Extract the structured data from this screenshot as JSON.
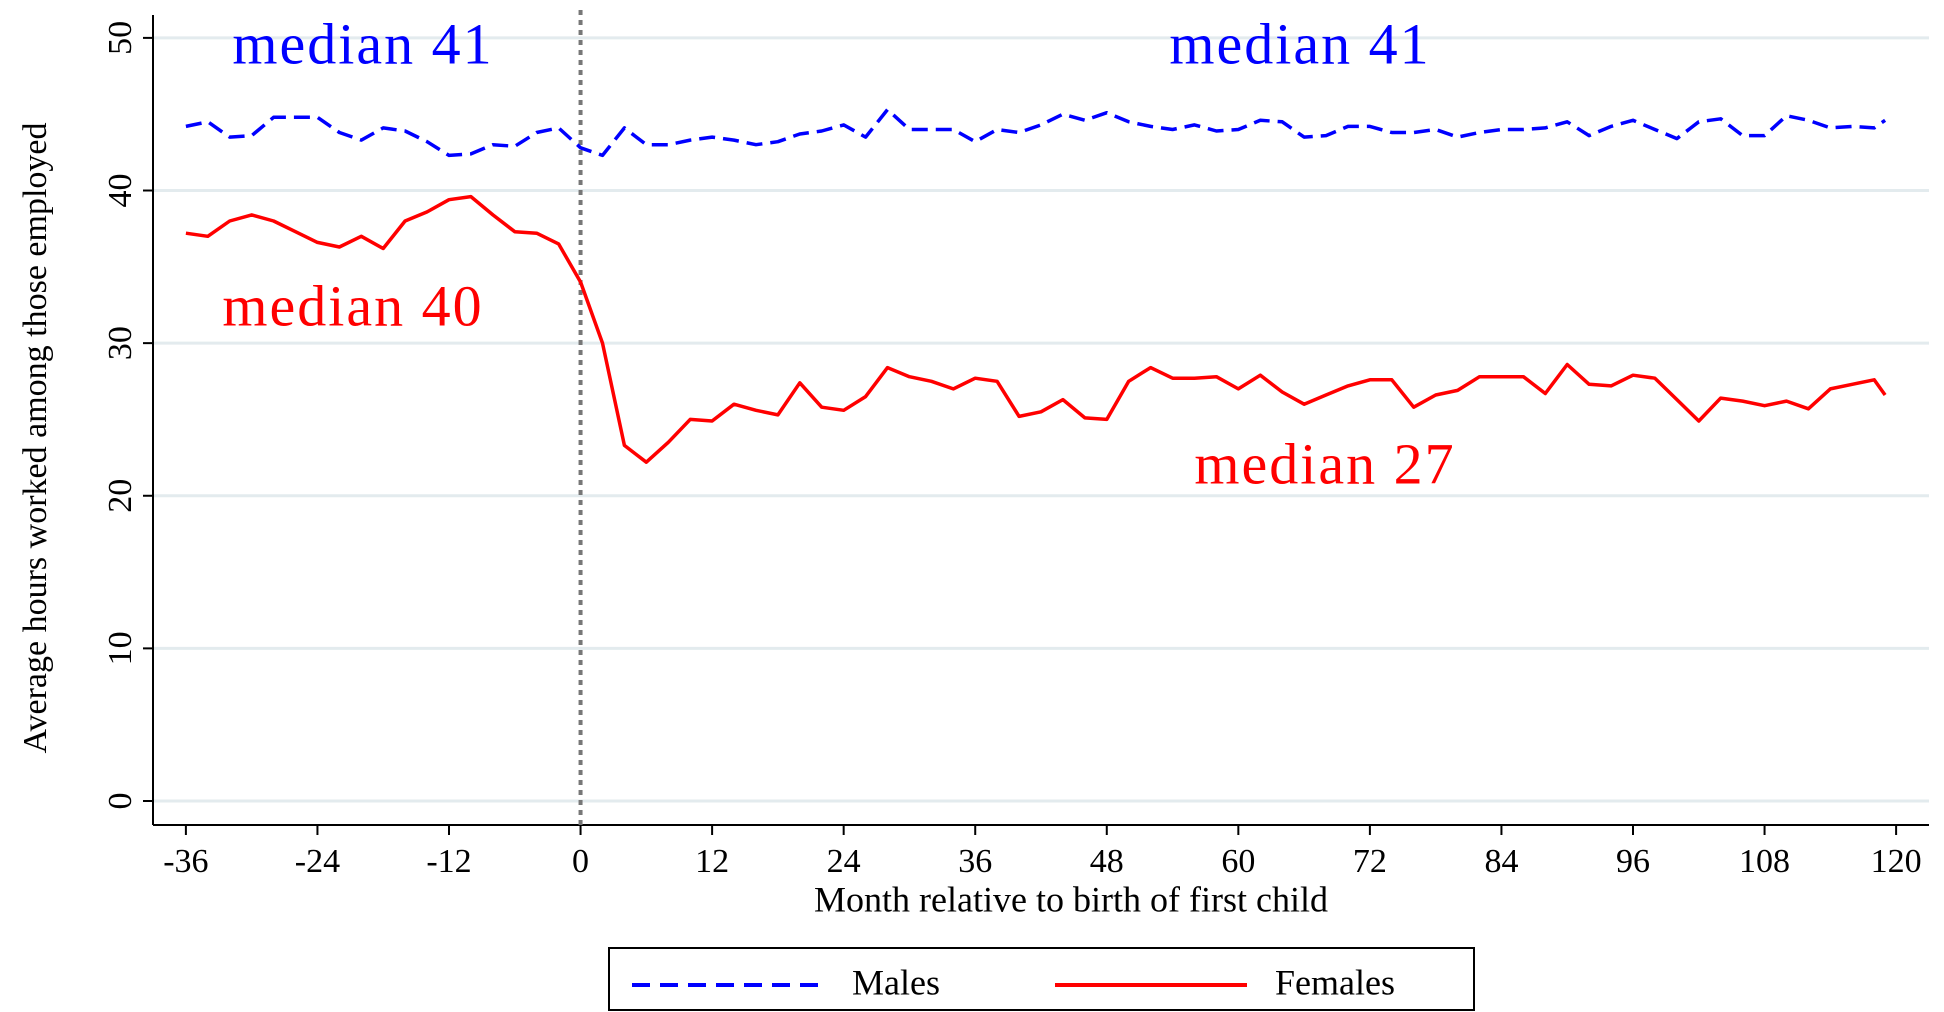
{
  "chart_data": {
    "type": "line",
    "x_label": "Month relative to birth of first child",
    "y_label": "Average hours worked among those employed",
    "x": [
      -36,
      -34,
      -32,
      -30,
      -28,
      -26,
      -24,
      -22,
      -20,
      -18,
      -16,
      -14,
      -12,
      -10,
      -8,
      -6,
      -4,
      -2,
      0,
      2,
      4,
      6,
      8,
      10,
      12,
      14,
      16,
      18,
      20,
      22,
      24,
      26,
      28,
      30,
      32,
      34,
      36,
      38,
      40,
      42,
      44,
      46,
      48,
      50,
      52,
      54,
      56,
      58,
      60,
      62,
      64,
      66,
      68,
      70,
      72,
      74,
      76,
      78,
      80,
      82,
      84,
      86,
      88,
      90,
      92,
      94,
      96,
      98,
      100,
      102,
      104,
      106,
      108,
      110,
      112,
      114,
      116,
      118,
      119
    ],
    "series": [
      {
        "name": "Males",
        "color": "#0000ff",
        "dash": true,
        "values": [
          44.2,
          44.5,
          43.5,
          43.6,
          44.8,
          44.8,
          44.8,
          43.8,
          43.3,
          44.1,
          43.9,
          43.2,
          42.3,
          42.4,
          43.0,
          42.9,
          43.8,
          44.1,
          42.8,
          42.3,
          44.1,
          43.0,
          43.0,
          43.3,
          43.5,
          43.3,
          43.0,
          43.2,
          43.7,
          43.9,
          44.3,
          43.5,
          45.3,
          44.0,
          44.0,
          44.0,
          43.2,
          44.0,
          43.8,
          44.3,
          45.0,
          44.6,
          45.1,
          44.5,
          44.2,
          44.0,
          44.3,
          43.9,
          44.0,
          44.6,
          44.5,
          43.5,
          43.6,
          44.2,
          44.2,
          43.8,
          43.8,
          44.0,
          43.5,
          43.8,
          44.0,
          44.0,
          44.1,
          44.5,
          43.6,
          44.2,
          44.6,
          44.0,
          43.4,
          44.5,
          44.7,
          43.6,
          43.6,
          44.9,
          44.6,
          44.1,
          44.2,
          44.1,
          44.6
        ]
      },
      {
        "name": "Females",
        "color": "#ff0000",
        "dash": false,
        "values": [
          37.2,
          37.0,
          38.0,
          38.4,
          38.0,
          37.3,
          36.6,
          36.3,
          37.0,
          36.2,
          38.0,
          38.6,
          39.4,
          39.6,
          38.4,
          37.3,
          37.2,
          36.5,
          34.0,
          30.0,
          23.3,
          22.2,
          23.5,
          25.0,
          24.9,
          26.0,
          25.6,
          25.3,
          27.4,
          25.8,
          25.6,
          26.5,
          28.4,
          27.8,
          27.5,
          27.0,
          27.7,
          27.5,
          25.2,
          25.5,
          26.3,
          25.1,
          25.0,
          27.5,
          28.4,
          27.7,
          27.7,
          27.8,
          27.0,
          27.9,
          26.8,
          26.0,
          26.6,
          27.2,
          27.6,
          27.6,
          25.8,
          26.6,
          26.9,
          27.8,
          27.8,
          27.8,
          26.7,
          28.6,
          27.3,
          27.2,
          27.9,
          27.7,
          26.3,
          24.9,
          26.4,
          26.2,
          25.9,
          26.2,
          25.7,
          27.0,
          27.3,
          27.6,
          26.6
        ]
      }
    ],
    "annotations": [
      {
        "text": "median 41",
        "color": "#0000ff"
      },
      {
        "text": "median 41",
        "color": "#0000ff"
      },
      {
        "text": "median 40",
        "color": "#ff0000"
      },
      {
        "text": "median 27",
        "color": "#ff0000"
      }
    ],
    "vline": 0,
    "xlim": [
      -39,
      123
    ],
    "xticks": [
      -36,
      -24,
      -12,
      0,
      12,
      24,
      36,
      48,
      60,
      72,
      84,
      96,
      108,
      120
    ],
    "ylim": [
      0,
      51.5
    ],
    "yticks": [
      0,
      10,
      20,
      30,
      40,
      50
    ],
    "grid": true
  }
}
